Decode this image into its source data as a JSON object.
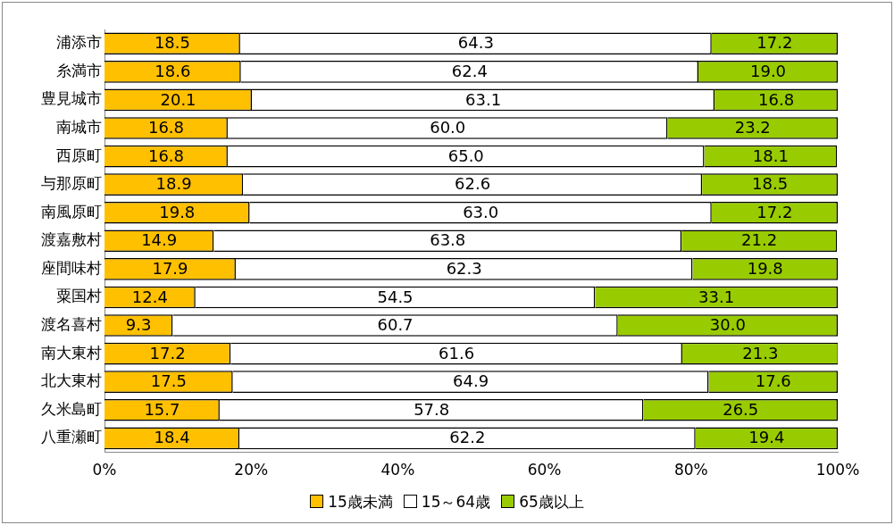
{
  "chart_data": {
    "type": "bar",
    "orientation": "horizontal",
    "stacked": true,
    "categories": [
      "浦添市",
      "糸満市",
      "豊見城市",
      "南城市",
      "西原町",
      "与那原町",
      "南風原町",
      "渡嘉敷村",
      "座間味村",
      "粟国村",
      "渡名喜村",
      "南大東村",
      "北大東村",
      "久米島町",
      "八重瀬町"
    ],
    "series": [
      {
        "name": "15歳未満",
        "color": "#ffc000",
        "values": [
          18.5,
          18.6,
          20.1,
          16.8,
          16.8,
          18.9,
          19.8,
          14.9,
          17.9,
          12.4,
          9.3,
          17.2,
          17.5,
          15.7,
          18.4
        ],
        "value_labels": [
          "18.5",
          "18.6",
          "20.1",
          "16.8",
          "16.8",
          "18.9",
          "19.8",
          "14.9",
          "17.9",
          "12.4",
          "9.3",
          "17.2",
          "17.5",
          "15.7",
          "18.4"
        ]
      },
      {
        "name": "15～64歳",
        "color": "#ffffff",
        "values": [
          64.3,
          62.4,
          63.1,
          60.0,
          65.0,
          62.6,
          63.0,
          63.8,
          62.3,
          54.5,
          60.7,
          61.6,
          64.9,
          57.8,
          62.2
        ],
        "value_labels": [
          "64.3",
          "62.4",
          "63.1",
          "60.0",
          "65.0",
          "62.6",
          "63.0",
          "63.8",
          "62.3",
          "54.5",
          "60.7",
          "61.6",
          "64.9",
          "57.8",
          "62.2"
        ]
      },
      {
        "name": "65歳以上",
        "color": "#99cc00",
        "values": [
          17.2,
          19.0,
          16.8,
          23.2,
          18.1,
          18.5,
          17.2,
          21.2,
          19.8,
          33.1,
          30.0,
          21.3,
          17.6,
          26.5,
          19.4
        ],
        "value_labels": [
          "17.2",
          "19.0",
          "16.8",
          "23.2",
          "18.1",
          "18.5",
          "17.2",
          "21.2",
          "19.8",
          "33.1",
          "30.0",
          "21.3",
          "17.6",
          "26.5",
          "19.4"
        ]
      }
    ],
    "xlim": [
      0,
      100
    ],
    "xticks": [
      {
        "value": 0,
        "label": "0%"
      },
      {
        "value": 20,
        "label": "20%"
      },
      {
        "value": 40,
        "label": "40%"
      },
      {
        "value": 60,
        "label": "60%"
      },
      {
        "value": 80,
        "label": "80%"
      },
      {
        "value": 100,
        "label": "100%"
      }
    ],
    "legend": "bottom"
  }
}
